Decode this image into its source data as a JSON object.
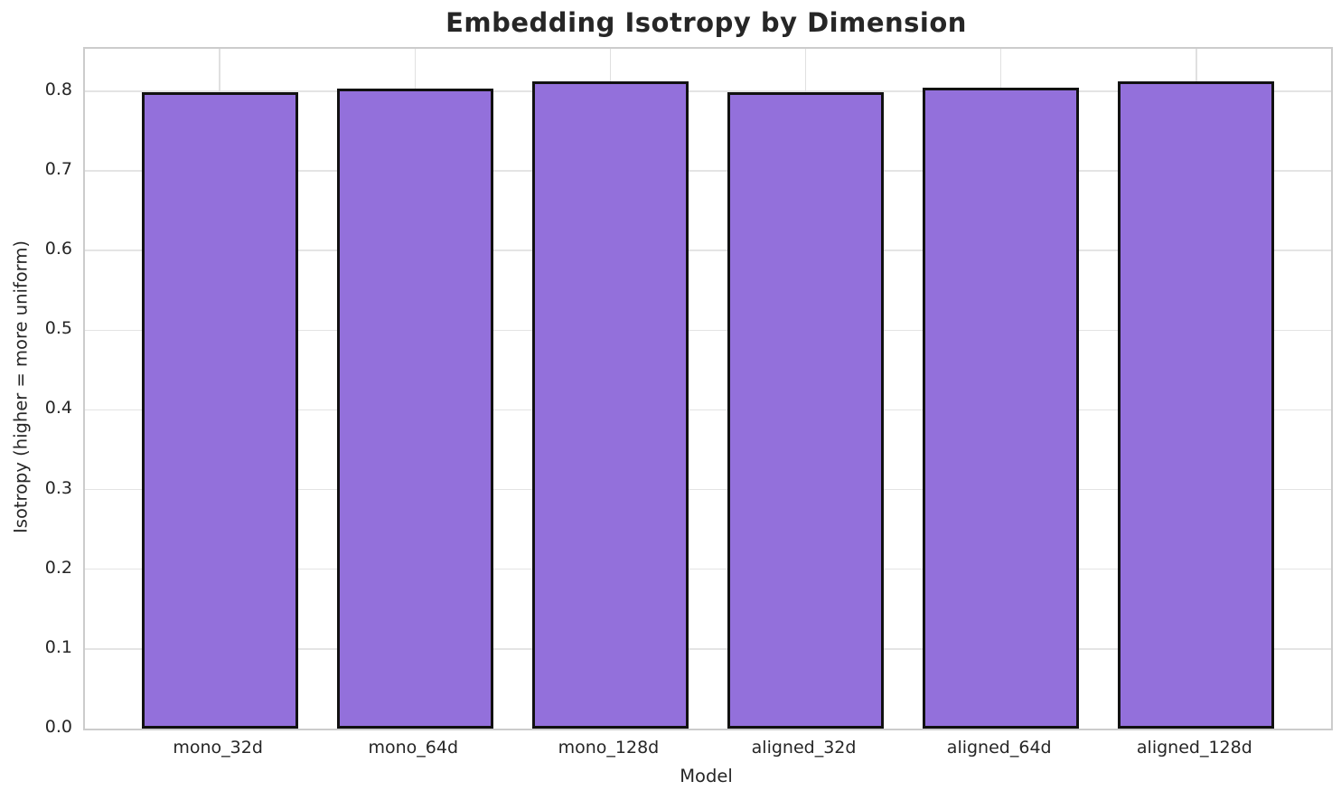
{
  "chart_data": {
    "type": "bar",
    "title": "Embedding Isotropy by Dimension",
    "xlabel": "Model",
    "ylabel": "Isotropy (higher = more uniform)",
    "categories": [
      "mono_32d",
      "mono_64d",
      "mono_128d",
      "aligned_32d",
      "aligned_64d",
      "aligned_128d"
    ],
    "values": [
      0.799,
      0.803,
      0.813,
      0.799,
      0.804,
      0.813
    ],
    "yticks": [
      0.0,
      0.1,
      0.2,
      0.3,
      0.4,
      0.5,
      0.6,
      0.7,
      0.8
    ],
    "ytick_labels": [
      "0.0",
      "0.1",
      "0.2",
      "0.3",
      "0.4",
      "0.5",
      "0.6",
      "0.7",
      "0.8"
    ],
    "ylim": [
      0,
      0.8533
    ],
    "xlim_units": [
      -0.69,
      5.69
    ],
    "bar_width_units": 0.8,
    "grid": "both",
    "legend": "none",
    "colors": {
      "bar_fill": "#9370DB",
      "bar_edge": "#111111",
      "grid_color": "#e4e4e4",
      "axes_edge": "#cccccc",
      "text": "#262626",
      "background": "#ffffff"
    }
  }
}
